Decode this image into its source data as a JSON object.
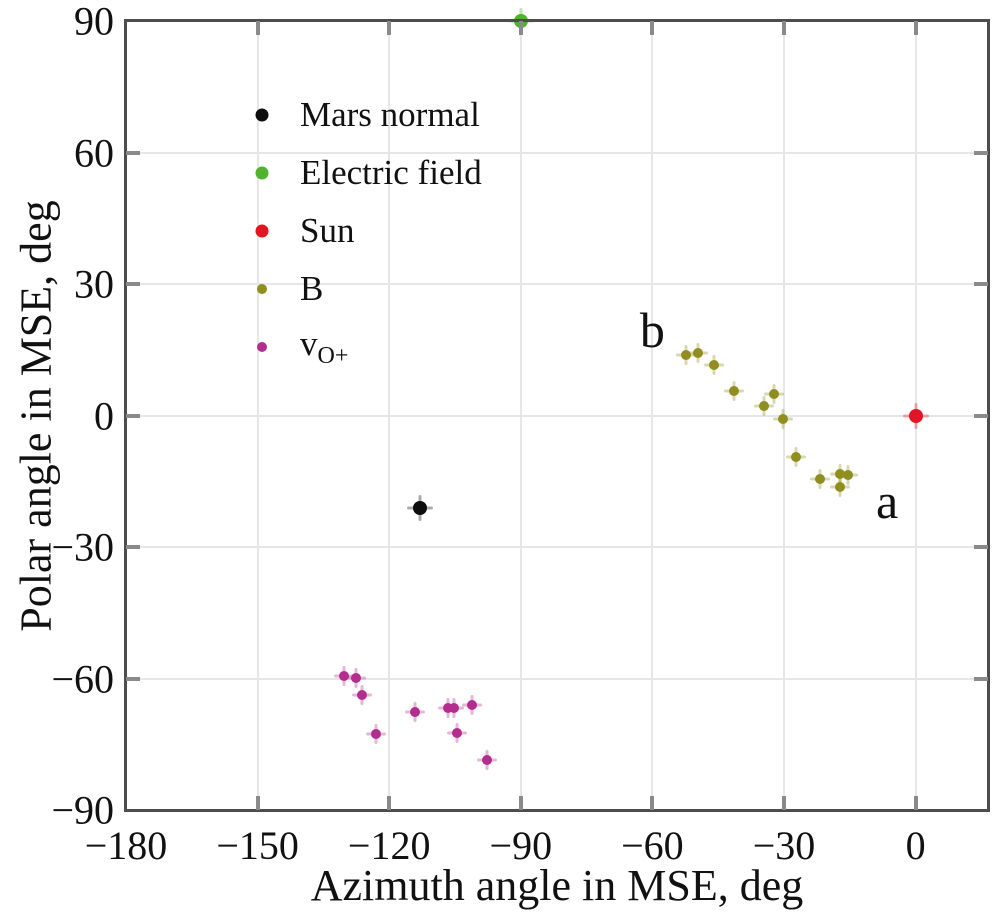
{
  "chart_data": {
    "type": "scatter",
    "title": "",
    "xlabel": "Azimuth angle in MSE, deg",
    "ylabel": "Polar angle in MSE, deg",
    "xlim": [
      -180,
      16.5
    ],
    "ylim": [
      -90,
      90
    ],
    "xticks": [
      -180,
      -150,
      -120,
      -90,
      -60,
      -30,
      0
    ],
    "yticks": [
      90,
      60,
      30,
      0,
      -30,
      -60,
      -90
    ],
    "grid": true,
    "legend_position": "inside-upper-left",
    "series": [
      {
        "name": "Mars normal",
        "color": "#0d0d0d",
        "marker": "large",
        "points": [
          [
            -113,
            -21
          ]
        ]
      },
      {
        "name": "Electric field",
        "color": "#4fb32c",
        "marker": "large",
        "points": [
          [
            -90,
            90
          ]
        ]
      },
      {
        "name": "Sun",
        "color": "#e11523",
        "marker": "large",
        "points": [
          [
            0,
            0
          ]
        ]
      },
      {
        "name": "B",
        "color": "#8f8e1e",
        "marker": "small",
        "points": [
          [
            -52.4,
            13.7
          ],
          [
            -49.7,
            14.2
          ],
          [
            -46.0,
            11.6
          ],
          [
            -41.4,
            5.6
          ],
          [
            -34.5,
            2.1
          ],
          [
            -32.3,
            5.0
          ],
          [
            -30.3,
            -0.9
          ],
          [
            -27.3,
            -9.4
          ],
          [
            -21.8,
            -14.4
          ],
          [
            -17.2,
            -13.3
          ],
          [
            -15.4,
            -13.6
          ],
          [
            -17.2,
            -16.2
          ]
        ]
      },
      {
        "name": "vO+",
        "color": "#b32d8e",
        "marker": "small",
        "points": [
          [
            -130.4,
            -59.4
          ],
          [
            -127.6,
            -59.8
          ],
          [
            -126.3,
            -63.7
          ],
          [
            -122.9,
            -72.6
          ],
          [
            -114.2,
            -67.6
          ],
          [
            -106.7,
            -66.7
          ],
          [
            -105.3,
            -66.7
          ],
          [
            -101.2,
            -66.0
          ],
          [
            -104.6,
            -72.4
          ],
          [
            -97.8,
            -78.6
          ]
        ]
      }
    ],
    "legend": {
      "entries": [
        {
          "label": "Mars normal",
          "color": "#0d0d0d",
          "marker": "large"
        },
        {
          "label": "Electric field",
          "color": "#4fb32c",
          "marker": "large"
        },
        {
          "label": "Sun",
          "color": "#e11523",
          "marker": "large"
        },
        {
          "label": "B",
          "color": "#8f8e1e",
          "marker": "small"
        },
        {
          "label": "v",
          "label_sub": "O+",
          "color": "#b32d8e",
          "marker": "small"
        }
      ]
    },
    "annotations": [
      {
        "text": "b",
        "x": -60,
        "y": 19.5
      },
      {
        "text": "a",
        "x": -6.5,
        "y": -19.5
      }
    ]
  },
  "colors": {
    "background": "#ffffff",
    "frame": "#4d4d4d",
    "tick": "#8a8a8a",
    "grid": "#e6e6e6",
    "text": "#111111"
  }
}
